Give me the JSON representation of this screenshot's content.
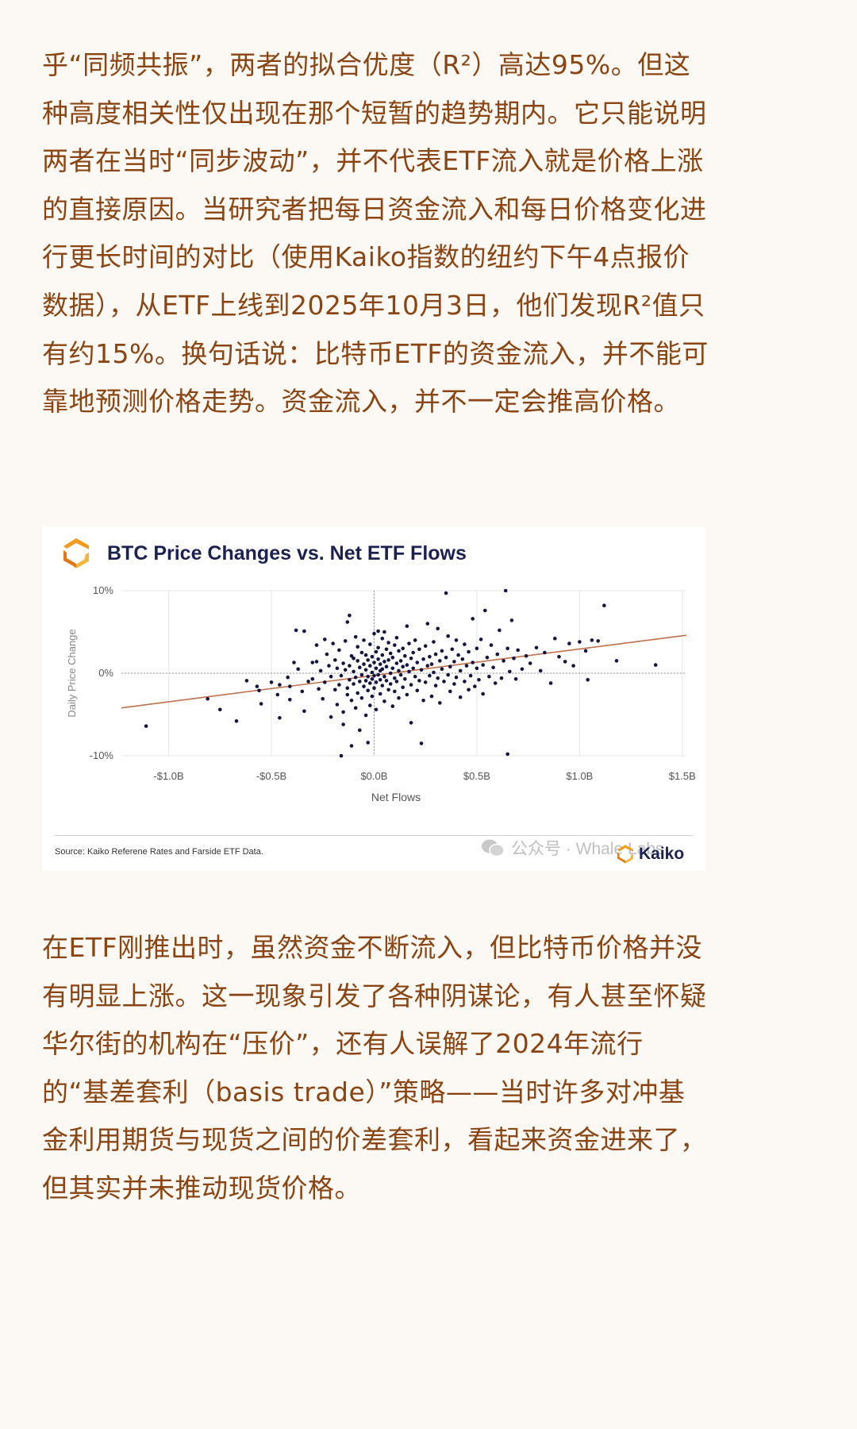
{
  "article": {
    "para1": "乎“同频共振”，两者的拟合优度（R²）高达95%。但这种高度相关性仅出现在那个短暂的趋势期内。它只能说明两者在当时“同步波动”，并不代表ETF流入就是价格上涨的直接原因。当研究者把每日资金流入和每日价格变化进行更长时间的对比（使用Kaiko指数的纽约下午4点报价数据），从ETF上线到2025年10月3日，他们发现R²值只有约15%。换句话说：比特币ETF的资金流入，并不能可靠地预测价格走势。资金流入，并不一定会推高价格。",
    "para2": "在ETF刚推出时，虽然资金不断流入，但比特币价格并没有明显上涨。这一现象引发了各种阴谋论，有人甚至怀疑华尔街的机构在“压价”，还有人误解了2024年流行的“基差套利（basis trade）”策略——当时许多对冲基金利用期货与现货之间的价差套利，看起来资金进来了，但其实并未推动现货价格。"
  },
  "chart_card": {
    "source": "Source: Kaiko Referene Rates and Farside ETF Data.",
    "watermark": "公众号 · Whale Labs",
    "brand": "Kaiko",
    "logo_icon": "kaiko-logo-icon",
    "colors": {
      "title": "#1b2150",
      "points": "#14163f",
      "trend": "#c0704a",
      "logo_orange": "#f29b1d",
      "grid": "#e6e6e6"
    }
  },
  "chart_data": {
    "type": "scatter",
    "title": "BTC Price Changes vs. Net ETF Flows",
    "xlabel": "Net Flows",
    "ylabel": "Daily Price Change",
    "x_unit": "USD billions",
    "y_unit": "percent",
    "xlim": [
      -1.1,
      1.5
    ],
    "ylim": [
      -10,
      10
    ],
    "xticks": [
      -1.0,
      -0.5,
      0.0,
      0.5,
      1.0,
      1.5
    ],
    "xtick_labels": [
      "-$1.0B",
      "-$0.5B",
      "$0.0B",
      "$0.5B",
      "$1.0B",
      "$1.5B"
    ],
    "yticks": [
      10,
      0,
      -10
    ],
    "ytick_labels": [
      "10%",
      "0%",
      "-10%"
    ],
    "grid": true,
    "trendline": {
      "x": [
        -1.23,
        1.52
      ],
      "y": [
        -4.2,
        4.6
      ]
    },
    "points": [
      [
        -1.11,
        -6.4
      ],
      [
        -0.81,
        -3.1
      ],
      [
        -0.75,
        -4.4
      ],
      [
        -0.67,
        -5.8
      ],
      [
        -0.62,
        -0.9
      ],
      [
        -0.57,
        -1.6
      ],
      [
        -0.56,
        -2.1
      ],
      [
        -0.55,
        -3.7
      ],
      [
        -0.5,
        -1.1
      ],
      [
        -0.47,
        -2.6
      ],
      [
        -0.46,
        -1.4
      ],
      [
        -0.46,
        -5.4
      ],
      [
        -0.42,
        -0.5
      ],
      [
        -0.41,
        -1.6
      ],
      [
        -0.41,
        -3.2
      ],
      [
        -0.39,
        1.3
      ],
      [
        -0.38,
        5.2
      ],
      [
        -0.37,
        0.5
      ],
      [
        -0.35,
        -2.2
      ],
      [
        -0.34,
        -4.6
      ],
      [
        -0.34,
        5.1
      ],
      [
        -0.32,
        -1.0
      ],
      [
        -0.3,
        1.3
      ],
      [
        -0.3,
        -0.7
      ],
      [
        -0.28,
        3.4
      ],
      [
        -0.28,
        1.4
      ],
      [
        -0.27,
        -1.9
      ],
      [
        -0.26,
        0.3
      ],
      [
        -0.25,
        -3.1
      ],
      [
        -0.24,
        -1.1
      ],
      [
        -0.24,
        4.1
      ],
      [
        -0.23,
        2.3
      ],
      [
        -0.22,
        0.9
      ],
      [
        -0.21,
        -0.4
      ],
      [
        -0.21,
        -5.3
      ],
      [
        -0.2,
        3.6
      ],
      [
        -0.19,
        -2.0
      ],
      [
        -0.19,
        1.6
      ],
      [
        -0.18,
        -3.8
      ],
      [
        -0.18,
        0.6
      ],
      [
        -0.17,
        -1.4
      ],
      [
        -0.17,
        2.8
      ],
      [
        -0.16,
        -10.0
      ],
      [
        -0.16,
        -0.3
      ],
      [
        -0.15,
        -4.7
      ],
      [
        -0.15,
        1.2
      ],
      [
        -0.15,
        -6.2
      ],
      [
        -0.14,
        0.4
      ],
      [
        -0.14,
        3.9
      ],
      [
        -0.13,
        -1.8
      ],
      [
        -0.13,
        6.2
      ],
      [
        -0.13,
        -2.6
      ],
      [
        -0.12,
        0.9
      ],
      [
        -0.12,
        7.0
      ],
      [
        -0.12,
        -0.8
      ],
      [
        -0.11,
        2.1
      ],
      [
        -0.11,
        -3.3
      ],
      [
        -0.11,
        -8.8
      ],
      [
        -0.1,
        0.2
      ],
      [
        -0.1,
        1.8
      ],
      [
        -0.1,
        -1.3
      ],
      [
        -0.09,
        4.4
      ],
      [
        -0.09,
        -4.2
      ],
      [
        -0.09,
        -0.5
      ],
      [
        -0.08,
        1.5
      ],
      [
        -0.08,
        -2.4
      ],
      [
        -0.08,
        3.2
      ],
      [
        -0.07,
        0.7
      ],
      [
        -0.07,
        -1.0
      ],
      [
        -0.07,
        -6.9
      ],
      [
        -0.06,
        2.5
      ],
      [
        -0.06,
        -0.2
      ],
      [
        -0.06,
        -3.0
      ],
      [
        -0.05,
        1.1
      ],
      [
        -0.05,
        4.0
      ],
      [
        -0.05,
        -1.6
      ],
      [
        -0.04,
        0.4
      ],
      [
        -0.04,
        -0.9
      ],
      [
        -0.04,
        -5.1
      ],
      [
        -0.04,
        2.2
      ],
      [
        -0.03,
        -8.4
      ],
      [
        -0.03,
        -0.4
      ],
      [
        -0.03,
        1.6
      ],
      [
        -0.03,
        -2.1
      ],
      [
        -0.02,
        0.9
      ],
      [
        -0.02,
        3.5
      ],
      [
        -0.02,
        -1.2
      ],
      [
        -0.02,
        -3.9
      ],
      [
        -0.01,
        0.1
      ],
      [
        -0.01,
        2.0
      ],
      [
        -0.01,
        -0.7
      ],
      [
        -0.01,
        -2.8
      ],
      [
        0.0,
        1.3
      ],
      [
        0.0,
        -0.3
      ],
      [
        0.0,
        4.8
      ],
      [
        0.0,
        -1.8
      ],
      [
        0.01,
        0.6
      ],
      [
        0.01,
        2.6
      ],
      [
        0.01,
        -1.1
      ],
      [
        0.01,
        -4.4
      ],
      [
        0.02,
        1.7
      ],
      [
        0.02,
        -0.2
      ],
      [
        0.02,
        5.1
      ],
      [
        0.02,
        3.1
      ],
      [
        0.03,
        0.3
      ],
      [
        0.03,
        -2.5
      ],
      [
        0.03,
        1.1
      ],
      [
        0.03,
        -0.8
      ],
      [
        0.04,
        2.2
      ],
      [
        0.04,
        -1.5
      ],
      [
        0.04,
        4.2
      ],
      [
        0.04,
        0.5
      ],
      [
        0.05,
        -3.4
      ],
      [
        0.05,
        1.4
      ],
      [
        0.05,
        -0.4
      ],
      [
        0.05,
        5.0
      ],
      [
        0.06,
        2.9
      ],
      [
        0.06,
        -0.9
      ],
      [
        0.06,
        0.8
      ],
      [
        0.07,
        -2.0
      ],
      [
        0.07,
        1.6
      ],
      [
        0.07,
        3.7
      ],
      [
        0.08,
        0.0
      ],
      [
        0.08,
        -1.3
      ],
      [
        0.08,
        2.4
      ],
      [
        0.09,
        -4.0
      ],
      [
        0.09,
        0.6
      ],
      [
        0.09,
        1.9
      ],
      [
        0.1,
        -0.6
      ],
      [
        0.1,
        3.4
      ],
      [
        0.1,
        -2.2
      ],
      [
        0.11,
        1.2
      ],
      [
        0.11,
        -1.0
      ],
      [
        0.11,
        4.3
      ],
      [
        0.12,
        0.3
      ],
      [
        0.12,
        2.7
      ],
      [
        0.12,
        -3.0
      ],
      [
        0.13,
        1.5
      ],
      [
        0.13,
        -0.2
      ],
      [
        0.14,
        3.0
      ],
      [
        0.14,
        -1.7
      ],
      [
        0.14,
        0.8
      ],
      [
        0.15,
        2.1
      ],
      [
        0.15,
        -0.7
      ],
      [
        0.16,
        5.7
      ],
      [
        0.16,
        1.0
      ],
      [
        0.16,
        -2.6
      ],
      [
        0.17,
        0.2
      ],
      [
        0.17,
        3.6
      ],
      [
        0.18,
        -1.4
      ],
      [
        0.18,
        1.8
      ],
      [
        0.18,
        -6.0
      ],
      [
        0.19,
        0.6
      ],
      [
        0.19,
        2.5
      ],
      [
        0.2,
        -0.4
      ],
      [
        0.2,
        4.0
      ],
      [
        0.21,
        1.3
      ],
      [
        0.21,
        -2.1
      ],
      [
        0.22,
        -0.9
      ],
      [
        0.22,
        2.9
      ],
      [
        0.23,
        -8.5
      ],
      [
        0.23,
        0.4
      ],
      [
        0.24,
        -3.3
      ],
      [
        0.24,
        1.7
      ],
      [
        0.25,
        -1.1
      ],
      [
        0.25,
        3.3
      ],
      [
        0.26,
        0.9
      ],
      [
        0.26,
        6.0
      ],
      [
        0.27,
        2.0
      ],
      [
        0.27,
        -0.3
      ],
      [
        0.28,
        -2.8
      ],
      [
        0.28,
        1.1
      ],
      [
        0.29,
        3.8
      ],
      [
        0.29,
        0.1
      ],
      [
        0.3,
        -1.5
      ],
      [
        0.3,
        2.3
      ],
      [
        0.31,
        -0.6
      ],
      [
        0.31,
        5.4
      ],
      [
        0.32,
        1.5
      ],
      [
        0.32,
        -3.6
      ],
      [
        0.33,
        0.5
      ],
      [
        0.33,
        2.7
      ],
      [
        0.34,
        -1.0
      ],
      [
        0.35,
        9.7
      ],
      [
        0.35,
        1.9
      ],
      [
        0.36,
        -0.2
      ],
      [
        0.36,
        4.5
      ],
      [
        0.37,
        -2.2
      ],
      [
        0.37,
        0.8
      ],
      [
        0.38,
        2.9
      ],
      [
        0.39,
        -1.3
      ],
      [
        0.39,
        1.4
      ],
      [
        0.4,
        4.0
      ],
      [
        0.4,
        -0.5
      ],
      [
        0.41,
        2.2
      ],
      [
        0.42,
        -2.9
      ],
      [
        0.42,
        0.3
      ],
      [
        0.43,
        1.7
      ],
      [
        0.44,
        -1.0
      ],
      [
        0.44,
        3.5
      ],
      [
        0.45,
        0.9
      ],
      [
        0.46,
        -2.0
      ],
      [
        0.46,
        2.6
      ],
      [
        0.47,
        -0.3
      ],
      [
        0.48,
        1.3
      ],
      [
        0.48,
        6.6
      ],
      [
        0.49,
        -1.6
      ],
      [
        0.5,
        0.6
      ],
      [
        0.5,
        3.0
      ],
      [
        0.51,
        -0.8
      ],
      [
        0.52,
        4.1
      ],
      [
        0.53,
        1.0
      ],
      [
        0.53,
        -2.5
      ],
      [
        0.54,
        7.6
      ],
      [
        0.55,
        1.9
      ],
      [
        0.56,
        -0.4
      ],
      [
        0.57,
        3.4
      ],
      [
        0.58,
        0.7
      ],
      [
        0.59,
        -1.2
      ],
      [
        0.6,
        2.3
      ],
      [
        0.61,
        5.2
      ],
      [
        0.62,
        -0.6
      ],
      [
        0.63,
        1.5
      ],
      [
        0.64,
        10.0
      ],
      [
        0.65,
        -9.8
      ],
      [
        0.65,
        3.0
      ],
      [
        0.66,
        0.2
      ],
      [
        0.67,
        6.4
      ],
      [
        0.68,
        1.8
      ],
      [
        0.69,
        -0.7
      ],
      [
        0.7,
        2.8
      ],
      [
        0.72,
        0.5
      ],
      [
        0.74,
        2.1
      ],
      [
        0.76,
        1.2
      ],
      [
        0.79,
        3.1
      ],
      [
        0.81,
        0.3
      ],
      [
        0.83,
        2.5
      ],
      [
        0.86,
        -1.2
      ],
      [
        0.88,
        4.2
      ],
      [
        0.9,
        2.0
      ],
      [
        0.93,
        1.4
      ],
      [
        0.95,
        3.6
      ],
      [
        0.97,
        0.9
      ],
      [
        1.0,
        3.8
      ],
      [
        1.03,
        2.7
      ],
      [
        1.04,
        -0.8
      ],
      [
        1.06,
        4.0
      ],
      [
        1.09,
        3.9
      ],
      [
        1.12,
        8.2
      ],
      [
        1.18,
        1.5
      ],
      [
        1.37,
        1.0
      ]
    ]
  }
}
